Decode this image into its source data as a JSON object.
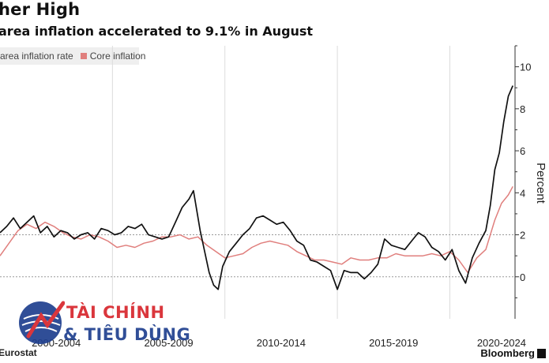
{
  "header": {
    "title": "her High",
    "subtitle": "area inflation accelerated to 9.1% in August"
  },
  "footer": {
    "source": "Eurostat",
    "brand": "Bloomberg"
  },
  "watermark": {
    "line1": "TÀI CHÍNH",
    "line2": "& TIÊU DÙNG"
  },
  "colors": {
    "headline": "#111111",
    "core": "#e07f7d",
    "grid": "#d8d8d8",
    "watermark_red": "#d7262c",
    "watermark_blue": "#1f3f8f"
  },
  "chart_data": {
    "type": "line",
    "title": "her High",
    "subtitle": "area inflation accelerated to 9.1% in August",
    "ylabel": "Percent",
    "ylim": [
      -2,
      11
    ],
    "yticks": [
      "0",
      "2",
      "4",
      "6",
      "8",
      "10"
    ],
    "xlim": [
      2000.0,
      2022.9
    ],
    "xticks": [
      "2000-2004",
      "2005-2009",
      "2010-2014",
      "2015-2019",
      "2020-2024"
    ],
    "reference_lines": [
      0,
      2
    ],
    "legend_position": "top-left",
    "series": [
      {
        "name": "area inflation rate",
        "color": "#111111",
        "x": [
          2000.0,
          2000.3,
          2000.6,
          2000.9,
          2001.2,
          2001.5,
          2001.8,
          2002.1,
          2002.4,
          2002.7,
          2003.0,
          2003.3,
          2003.6,
          2003.9,
          2004.2,
          2004.5,
          2004.8,
          2005.1,
          2005.4,
          2005.7,
          2006.0,
          2006.3,
          2006.6,
          2006.9,
          2007.2,
          2007.5,
          2007.8,
          2008.1,
          2008.4,
          2008.6,
          2008.9,
          2009.1,
          2009.3,
          2009.5,
          2009.7,
          2009.9,
          2010.2,
          2010.5,
          2010.8,
          2011.1,
          2011.4,
          2011.7,
          2012.0,
          2012.3,
          2012.6,
          2012.9,
          2013.2,
          2013.5,
          2013.8,
          2014.1,
          2014.4,
          2014.7,
          2015.0,
          2015.3,
          2015.6,
          2015.9,
          2016.2,
          2016.5,
          2016.8,
          2017.1,
          2017.4,
          2017.7,
          2018.0,
          2018.3,
          2018.6,
          2018.9,
          2019.2,
          2019.5,
          2019.8,
          2020.1,
          2020.4,
          2020.7,
          2021.0,
          2021.3,
          2021.6,
          2021.8,
          2022.0,
          2022.2,
          2022.4,
          2022.6,
          2022.8
        ],
        "values": [
          2.1,
          2.4,
          2.8,
          2.3,
          2.6,
          2.9,
          2.1,
          2.4,
          1.9,
          2.2,
          2.1,
          1.8,
          2.0,
          2.1,
          1.8,
          2.3,
          2.2,
          2.0,
          2.1,
          2.4,
          2.3,
          2.5,
          2.0,
          1.9,
          1.8,
          1.9,
          2.6,
          3.3,
          3.7,
          4.1,
          2.2,
          1.2,
          0.2,
          -0.4,
          -0.6,
          0.5,
          1.2,
          1.6,
          2.0,
          2.3,
          2.8,
          2.9,
          2.7,
          2.5,
          2.6,
          2.2,
          1.7,
          1.5,
          0.8,
          0.7,
          0.5,
          0.3,
          -0.6,
          0.3,
          0.2,
          0.2,
          -0.1,
          0.2,
          0.6,
          1.8,
          1.5,
          1.4,
          1.3,
          1.7,
          2.1,
          1.9,
          1.4,
          1.2,
          0.8,
          1.3,
          0.3,
          -0.3,
          0.9,
          1.6,
          2.2,
          3.4,
          5.1,
          5.9,
          7.4,
          8.6,
          9.1
        ]
      },
      {
        "name": "Core inflation",
        "color": "#e07f7d",
        "x": [
          2000.0,
          2000.4,
          2000.8,
          2001.2,
          2001.6,
          2002.0,
          2002.4,
          2002.8,
          2003.2,
          2003.6,
          2004.0,
          2004.4,
          2004.8,
          2005.2,
          2005.6,
          2006.0,
          2006.4,
          2006.8,
          2007.2,
          2007.6,
          2008.0,
          2008.4,
          2008.8,
          2009.2,
          2009.6,
          2010.0,
          2010.4,
          2010.8,
          2011.2,
          2011.6,
          2012.0,
          2012.4,
          2012.8,
          2013.2,
          2013.6,
          2014.0,
          2014.4,
          2014.8,
          2015.2,
          2015.6,
          2016.0,
          2016.4,
          2016.8,
          2017.2,
          2017.6,
          2018.0,
          2018.4,
          2018.8,
          2019.2,
          2019.6,
          2020.0,
          2020.4,
          2020.8,
          2021.2,
          2021.6,
          2022.0,
          2022.3,
          2022.6,
          2022.8
        ],
        "values": [
          1.0,
          1.6,
          2.2,
          2.5,
          2.3,
          2.6,
          2.4,
          2.1,
          1.9,
          1.8,
          2.0,
          1.9,
          1.7,
          1.4,
          1.5,
          1.4,
          1.6,
          1.7,
          1.9,
          1.9,
          2.0,
          1.8,
          1.9,
          1.5,
          1.2,
          0.9,
          1.0,
          1.1,
          1.4,
          1.6,
          1.7,
          1.6,
          1.5,
          1.2,
          1.0,
          0.8,
          0.8,
          0.7,
          0.6,
          0.9,
          0.8,
          0.8,
          0.9,
          0.9,
          1.1,
          1.0,
          1.0,
          1.0,
          1.1,
          1.0,
          1.2,
          0.8,
          0.2,
          0.9,
          1.3,
          2.7,
          3.5,
          3.9,
          4.3
        ]
      }
    ]
  }
}
